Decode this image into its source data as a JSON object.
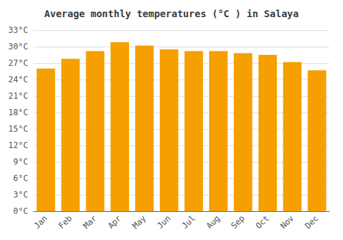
{
  "chart_data": {
    "type": "bar",
    "title": "Average monthly temperatures (°C ) in Salaya",
    "categories": [
      "Jan",
      "Feb",
      "Mar",
      "Apr",
      "May",
      "Jun",
      "Jul",
      "Aug",
      "Sep",
      "Oct",
      "Nov",
      "Dec"
    ],
    "values": [
      26.0,
      27.8,
      29.2,
      30.8,
      30.2,
      29.5,
      29.2,
      29.2,
      28.8,
      28.5,
      27.2,
      25.7
    ],
    "color": "#F5A000",
    "ylim": [
      0,
      33
    ],
    "yticks": [
      {
        "value": 0,
        "label": "0°C"
      },
      {
        "value": 3,
        "label": "3°C"
      },
      {
        "value": 6,
        "label": "6°C"
      },
      {
        "value": 9,
        "label": "9°C"
      },
      {
        "value": 12,
        "label": "12°C"
      },
      {
        "value": 15,
        "label": "15°C"
      },
      {
        "value": 18,
        "label": "18°C"
      },
      {
        "value": 21,
        "label": "21°C"
      },
      {
        "value": 24,
        "label": "24°C"
      },
      {
        "value": 27,
        "label": "27°C"
      },
      {
        "value": 30,
        "label": "30°C"
      },
      {
        "value": 33,
        "label": "33°C"
      }
    ],
    "grid": true
  }
}
